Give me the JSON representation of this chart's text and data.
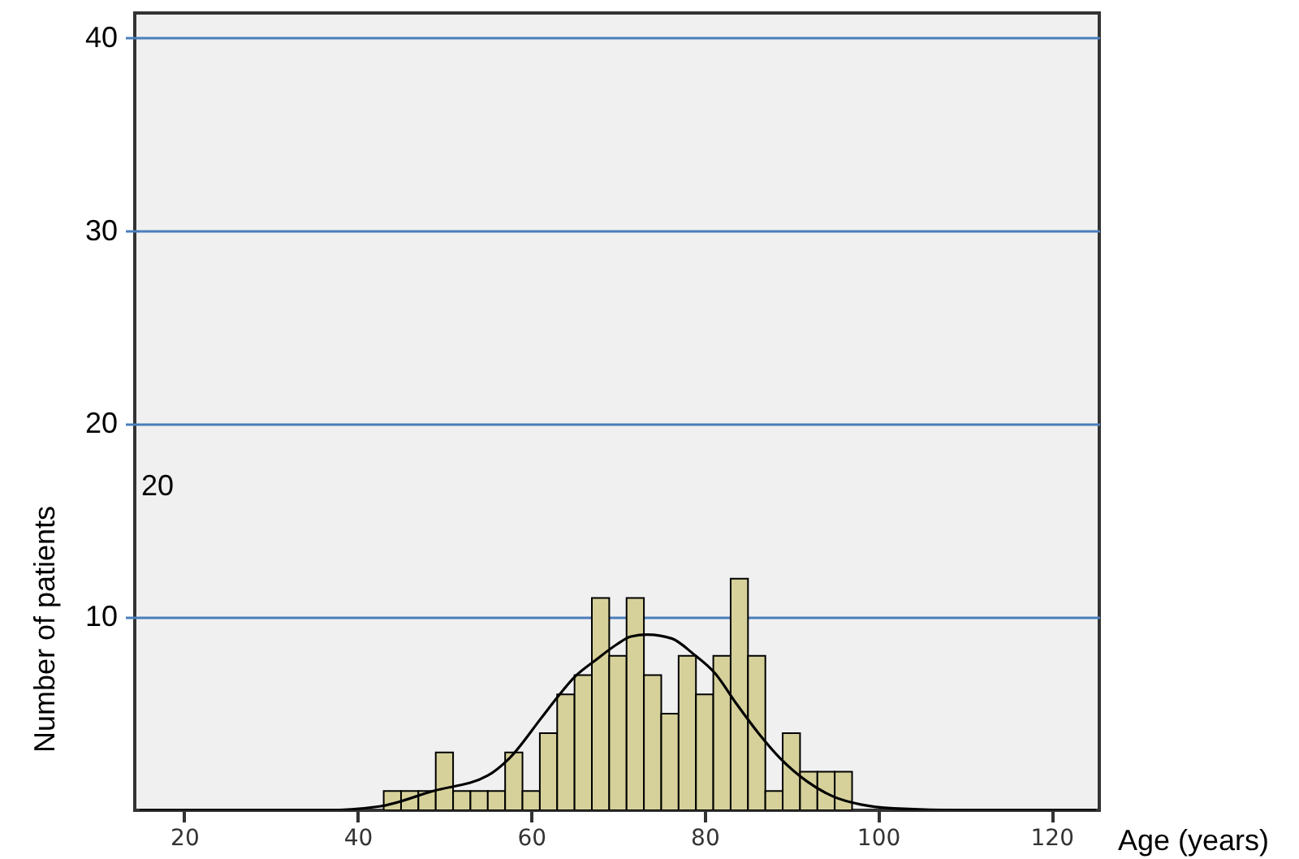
{
  "chart_data": {
    "type": "histogram",
    "xlabel": "Age (years)",
    "ylabel": "Number of patients",
    "bins": [
      43,
      45,
      47,
      49,
      51,
      53,
      55,
      57,
      59,
      61,
      63,
      65,
      67,
      69,
      71,
      73,
      75,
      77,
      79,
      81,
      83,
      85,
      87,
      89,
      91,
      93,
      95,
      97
    ],
    "values": [
      1,
      1,
      1,
      3,
      1,
      1,
      1,
      3,
      1,
      4,
      6,
      7,
      11,
      8,
      11,
      7,
      5,
      8,
      6,
      8,
      12,
      8,
      1,
      4,
      2,
      2,
      2
    ],
    "color": "#d6d19a",
    "series": [
      {
        "type": "line",
        "color": "#000000",
        "x": [
          15,
          30,
          36,
          42.5,
          48.7,
          55,
          57.5,
          61.2,
          63.1,
          65,
          67.5,
          69.9,
          71.5,
          73.4,
          76.2,
          78.7,
          81.2,
          83.7,
          86.2,
          88.7,
          91.8,
          94.9,
          98,
          101.8,
          110,
          125
        ],
        "values": [
          0,
          0,
          0,
          0.2,
          1.0,
          1.8,
          2.7,
          4.8,
          5.9,
          6.9,
          7.8,
          8.6,
          9.0,
          9.1,
          8.9,
          8.1,
          7.1,
          5.5,
          4.0,
          2.7,
          1.5,
          0.7,
          0.3,
          0.1,
          0,
          0
        ]
      }
    ],
    "xlim": [
      14.3,
      125.5
    ],
    "xticks": [
      20,
      40,
      60,
      80,
      100,
      120
    ],
    "ylim": [
      0,
      41.3
    ],
    "yticks": [
      10,
      20,
      30,
      40
    ],
    "grid": "y",
    "annotations": [
      "20"
    ]
  }
}
